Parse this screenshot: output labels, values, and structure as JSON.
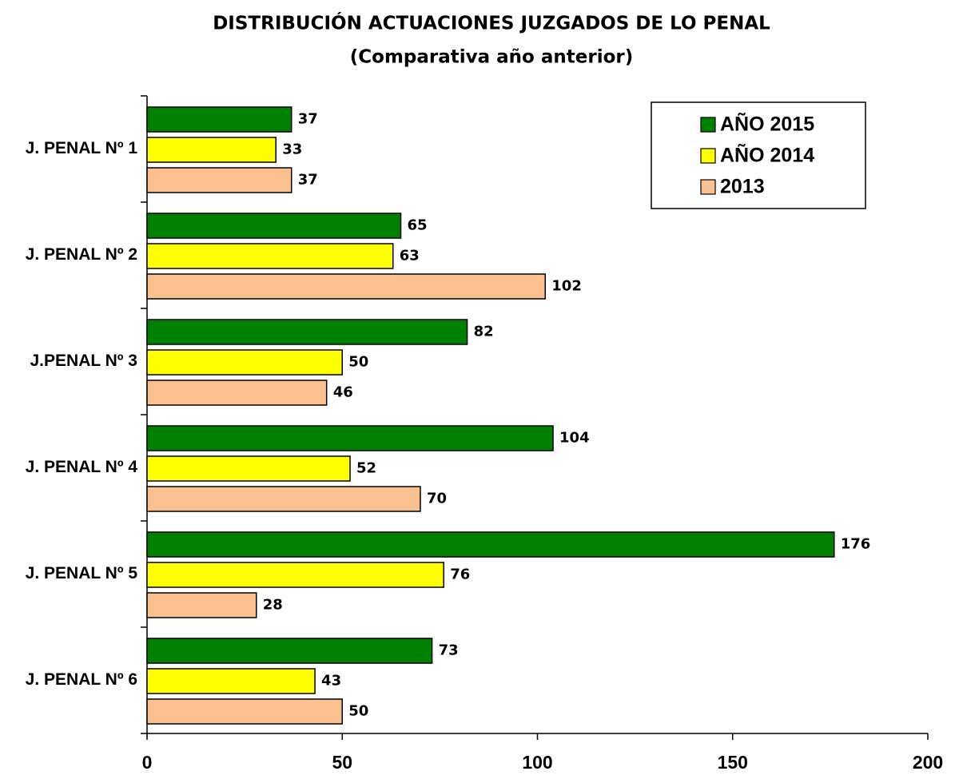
{
  "chart_data": {
    "type": "barh",
    "title": "DISTRIBUCIÓN ACTUACIONES JUZGADOS DE LO PENAL",
    "subtitle": "(Comparativa año anterior)",
    "categories": [
      "J. PENAL Nº 1",
      "J. PENAL Nº 2",
      "J.PENAL Nº 3",
      "J. PENAL Nº 4",
      "J. PENAL Nº 5",
      "J. PENAL Nº 6"
    ],
    "series": [
      {
        "name": "AÑO 2015",
        "color": "#008000",
        "values": [
          37,
          65,
          82,
          104,
          176,
          73
        ]
      },
      {
        "name": "AÑO 2014",
        "color": "#ffff00",
        "values": [
          33,
          63,
          50,
          52,
          76,
          43
        ]
      },
      {
        "name": "2013",
        "color": "#fac090",
        "values": [
          37,
          102,
          46,
          70,
          28,
          50
        ]
      }
    ],
    "xlim": [
      0,
      200
    ],
    "xticks": [
      0,
      50,
      100,
      150,
      200
    ],
    "legend": "upper right"
  }
}
